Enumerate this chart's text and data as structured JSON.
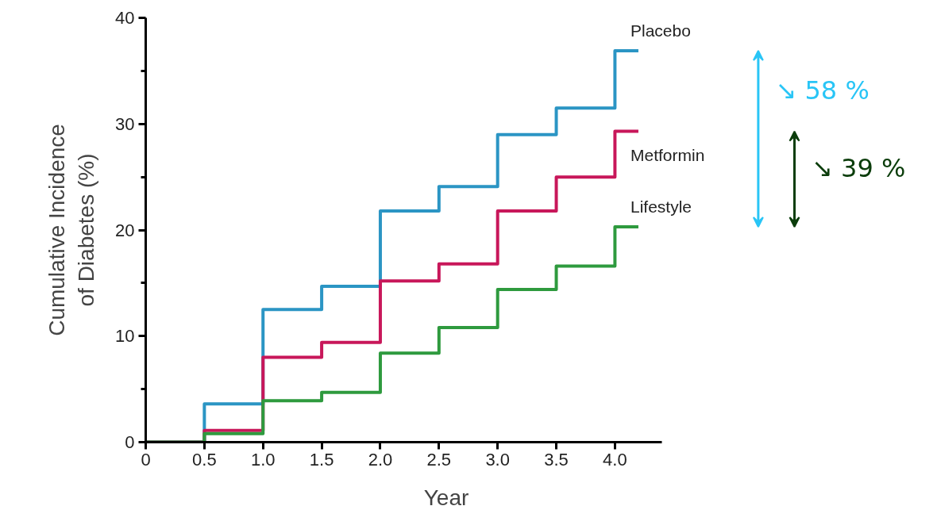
{
  "chart_data": {
    "type": "step",
    "xlabel": "Year",
    "ylabel": "Cumulative Incidence\nof Diabetes (%)",
    "x": [
      0,
      0.5,
      1.0,
      1.5,
      2.0,
      2.5,
      3.0,
      3.5,
      4.0,
      4.2
    ],
    "series": [
      {
        "name": "Placebo",
        "color": "#2b95c4",
        "values": [
          0,
          3.6,
          12.5,
          14.7,
          21.8,
          24.1,
          29.0,
          31.5,
          36.9,
          36.9
        ]
      },
      {
        "name": "Metformin",
        "color": "#c8175a",
        "values": [
          0,
          1.1,
          8.0,
          9.4,
          15.2,
          16.8,
          21.8,
          25.0,
          29.3,
          29.3
        ]
      },
      {
        "name": "Lifestyle",
        "color": "#2e9a3e",
        "values": [
          0,
          0.8,
          3.9,
          4.7,
          8.4,
          10.8,
          14.4,
          16.6,
          20.3,
          20.3
        ]
      }
    ],
    "xlim": [
      0,
      4.4
    ],
    "ylim": [
      0,
      40
    ],
    "xticks": [
      0,
      0.5,
      {
        "value": 1,
        "label": "1.0"
      },
      1.5,
      {
        "value": 2,
        "label": "2.0"
      },
      2.5,
      {
        "value": 3,
        "label": "3.0"
      },
      3.5,
      {
        "value": 4,
        "label": "4.0"
      }
    ],
    "yticks": [
      0,
      10,
      20,
      30,
      40
    ],
    "grid": false,
    "annotations": [
      "↘ 58 %",
      "↘ 39 %"
    ]
  }
}
